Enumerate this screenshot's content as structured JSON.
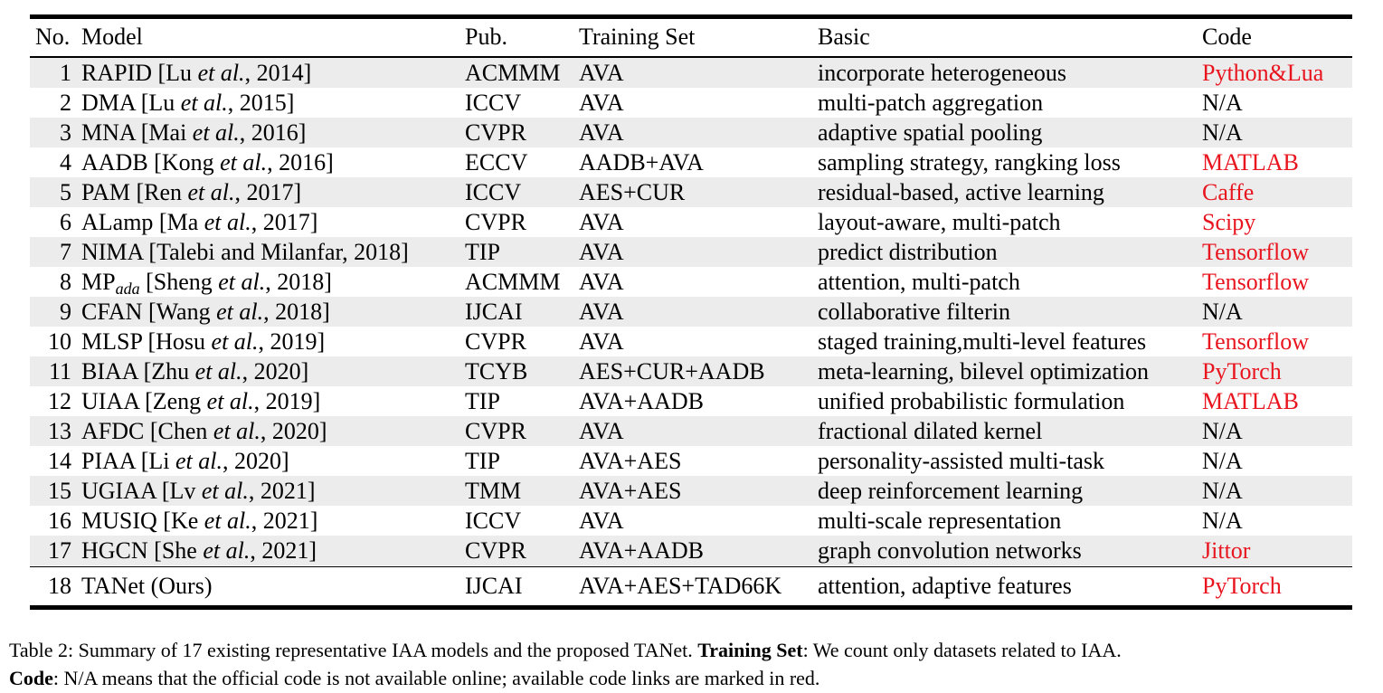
{
  "table": {
    "headers": {
      "no": "No.",
      "model": "Model",
      "pub": "Pub.",
      "training_set": "Training Set",
      "basic": "Basic",
      "code": "Code"
    },
    "rows": [
      {
        "no": "1",
        "name": "RAPID",
        "cite_pre": "[Lu ",
        "cite_etal": "et al.",
        "cite_post": ", 2014]",
        "pub": "ACMMM",
        "train": "AVA",
        "basic": "incorporate heterogeneous",
        "code": "Python&Lua",
        "code_available": true
      },
      {
        "no": "2",
        "name": "DMA",
        "cite_pre": "[Lu ",
        "cite_etal": "et al.",
        "cite_post": ", 2015]",
        "pub": "ICCV",
        "train": "AVA",
        "basic": "multi-patch aggregation",
        "code": "N/A",
        "code_available": false
      },
      {
        "no": "3",
        "name": "MNA",
        "cite_pre": "[Mai ",
        "cite_etal": "et al.",
        "cite_post": ", 2016]",
        "pub": "CVPR",
        "train": "AVA",
        "basic": "adaptive spatial pooling",
        "code": "N/A",
        "code_available": false
      },
      {
        "no": "4",
        "name": "AADB",
        "cite_pre": "[Kong ",
        "cite_etal": "et al.",
        "cite_post": ", 2016]",
        "pub": "ECCV",
        "train": "AADB+AVA",
        "basic": "sampling strategy, rangking loss",
        "code": "MATLAB",
        "code_available": true
      },
      {
        "no": "5",
        "name": "PAM",
        "cite_pre": "[Ren ",
        "cite_etal": "et al.",
        "cite_post": ", 2017]",
        "pub": "ICCV",
        "train": "AES+CUR",
        "basic": "residual-based, active learning",
        "code": "Caffe",
        "code_available": true
      },
      {
        "no": "6",
        "name": "ALamp",
        "cite_pre": "[Ma ",
        "cite_etal": "et al.",
        "cite_post": ", 2017]",
        "pub": "CVPR",
        "train": "AVA",
        "basic": "layout-aware, multi-patch",
        "code": "Scipy",
        "code_available": true
      },
      {
        "no": "7",
        "name": "NIMA",
        "cite_pre": "[Talebi and Milanfar, 2018]",
        "cite_etal": "",
        "cite_post": "",
        "pub": "TIP",
        "train": "AVA",
        "basic": "predict distribution",
        "code": "Tensorflow",
        "code_available": true
      },
      {
        "no": "8",
        "name": "MP",
        "name_sub": "ada",
        "cite_pre": "[Sheng ",
        "cite_etal": "et al.",
        "cite_post": ", 2018]",
        "pub": "ACMMM",
        "train": "AVA",
        "basic": "attention, multi-patch",
        "code": "Tensorflow",
        "code_available": true
      },
      {
        "no": "9",
        "name": "CFAN",
        "cite_pre": "[Wang ",
        "cite_etal": "et al.",
        "cite_post": ", 2018]",
        "pub": "IJCAI",
        "train": "AVA",
        "basic": "collaborative filterin",
        "code": "N/A",
        "code_available": false
      },
      {
        "no": "10",
        "name": "MLSP",
        "cite_pre": "[Hosu ",
        "cite_etal": "et al.",
        "cite_post": ", 2019]",
        "pub": "CVPR",
        "train": "AVA",
        "basic": "staged training,multi-level features",
        "code": "Tensorflow",
        "code_available": true
      },
      {
        "no": "11",
        "name": "BIAA",
        "cite_pre": "[Zhu ",
        "cite_etal": "et al.",
        "cite_post": ", 2020]",
        "pub": "TCYB",
        "train": "AES+CUR+AADB",
        "basic": "meta-learning, bilevel optimization",
        "code": "PyTorch",
        "code_available": true
      },
      {
        "no": "12",
        "name": "UIAA",
        "cite_pre": "[Zeng ",
        "cite_etal": "et al.",
        "cite_post": ", 2019]",
        "pub": "TIP",
        "train": "AVA+AADB",
        "basic": "unified probabilistic formulation",
        "code": "MATLAB",
        "code_available": true
      },
      {
        "no": "13",
        "name": "AFDC",
        "cite_pre": "[Chen ",
        "cite_etal": "et al.",
        "cite_post": ", 2020]",
        "pub": "CVPR",
        "train": "AVA",
        "basic": "fractional dilated kernel",
        "code": "N/A",
        "code_available": false
      },
      {
        "no": "14",
        "name": "PIAA",
        "cite_pre": "[Li ",
        "cite_etal": "et al.",
        "cite_post": ", 2020]",
        "pub": "TIP",
        "train": "AVA+AES",
        "basic": "personality-assisted multi-task",
        "code": "N/A",
        "code_available": false
      },
      {
        "no": "15",
        "name": "UGIAA",
        "cite_pre": "[Lv ",
        "cite_etal": "et al.",
        "cite_post": ", 2021]",
        "pub": "TMM",
        "train": "AVA+AES",
        "basic": "deep reinforcement learning",
        "code": "N/A",
        "code_available": false
      },
      {
        "no": "16",
        "name": "MUSIQ",
        "cite_pre": "[Ke ",
        "cite_etal": "et al.",
        "cite_post": ", 2021]",
        "pub": "ICCV",
        "train": "AVA",
        "basic": "multi-scale representation",
        "code": "N/A",
        "code_available": false
      },
      {
        "no": "17",
        "name": "HGCN",
        "cite_pre": "[She ",
        "cite_etal": "et al.",
        "cite_post": ", 2021]",
        "pub": "CVPR",
        "train": "AVA+AADB",
        "basic": "graph convolution networks",
        "code": "Jittor",
        "code_available": true
      }
    ],
    "final_row": {
      "no": "18",
      "name": "TANet (Ours)",
      "pub": "IJCAI",
      "train": "AVA+AES+TAD66K",
      "basic": "attention, adaptive features",
      "code": "PyTorch",
      "code_available": true
    }
  },
  "caption": {
    "line1_text": "Table 2: Summary of 17 existing representative IAA models and the proposed TANet. ",
    "line1_bold": "Training Set",
    "line1_rest": ": We count only datasets related to IAA.",
    "line2_bold": "Code",
    "line2_rest": ": N/A means that the official code is not available online; available code links are marked in red."
  },
  "colors": {
    "available_code": "#e8141e",
    "row_shade": "#ececec"
  }
}
